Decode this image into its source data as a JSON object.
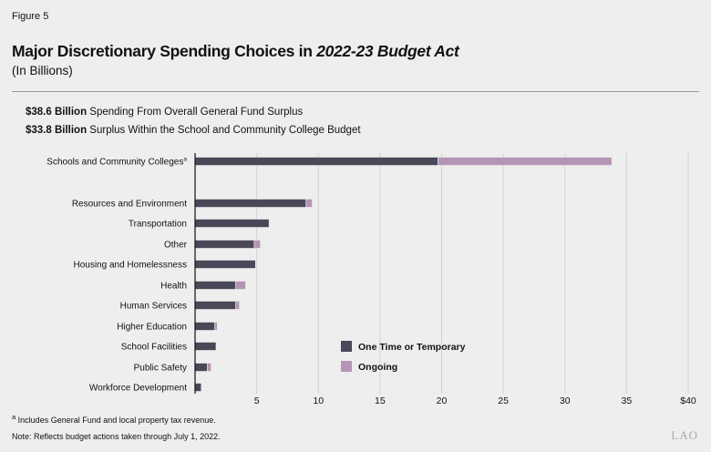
{
  "figure_label": "Figure 5",
  "title_main": "Major Discretionary Spending Choices in ",
  "title_italic": "2022-23 Budget Act",
  "subtitle": "(In Billions)",
  "summary": [
    {
      "amount": "$38.6 Billion",
      "text": " Spending From Overall General Fund Surplus"
    },
    {
      "amount": "$33.8 Billion",
      "text": " Surplus Within the School and Community College Budget"
    }
  ],
  "footnotes": {
    "a_marker": "a",
    "a_text": " Includes General Fund and local property tax revenue.",
    "note": "Note: Reflects budget actions taken through July 1, 2022."
  },
  "logo_text": "LAO",
  "chart_data": {
    "type": "bar",
    "orientation": "horizontal",
    "stacked": true,
    "categories": [
      "Schools and Community Colleges",
      "Resources and Environment",
      "Transportation",
      "Other",
      "Housing and Homelessness",
      "Health",
      "Human Services",
      "Higher Education",
      "School Facilities",
      "Public Safety",
      "Workforce Development"
    ],
    "category_superscripts": [
      "a",
      "",
      "",
      "",
      "",
      "",
      "",
      "",
      "",
      "",
      ""
    ],
    "series": [
      {
        "name": "One Time or Temporary",
        "color": "#4a4858",
        "values": [
          19.7,
          9.0,
          6.0,
          4.8,
          4.9,
          3.3,
          3.3,
          1.6,
          1.7,
          1.0,
          0.5
        ]
      },
      {
        "name": "Ongoing",
        "color": "#b595b5",
        "values": [
          14.1,
          0.5,
          0,
          0.5,
          0,
          0.8,
          0.3,
          0.2,
          0,
          0.3,
          0
        ]
      }
    ],
    "xlim": [
      0,
      40
    ],
    "xticks": [
      5,
      10,
      15,
      20,
      25,
      30,
      35,
      40
    ],
    "xtick_labels": [
      "5",
      "10",
      "15",
      "20",
      "25",
      "30",
      "35",
      "$40"
    ],
    "grid": true,
    "legend_placement": "bottom-center"
  }
}
